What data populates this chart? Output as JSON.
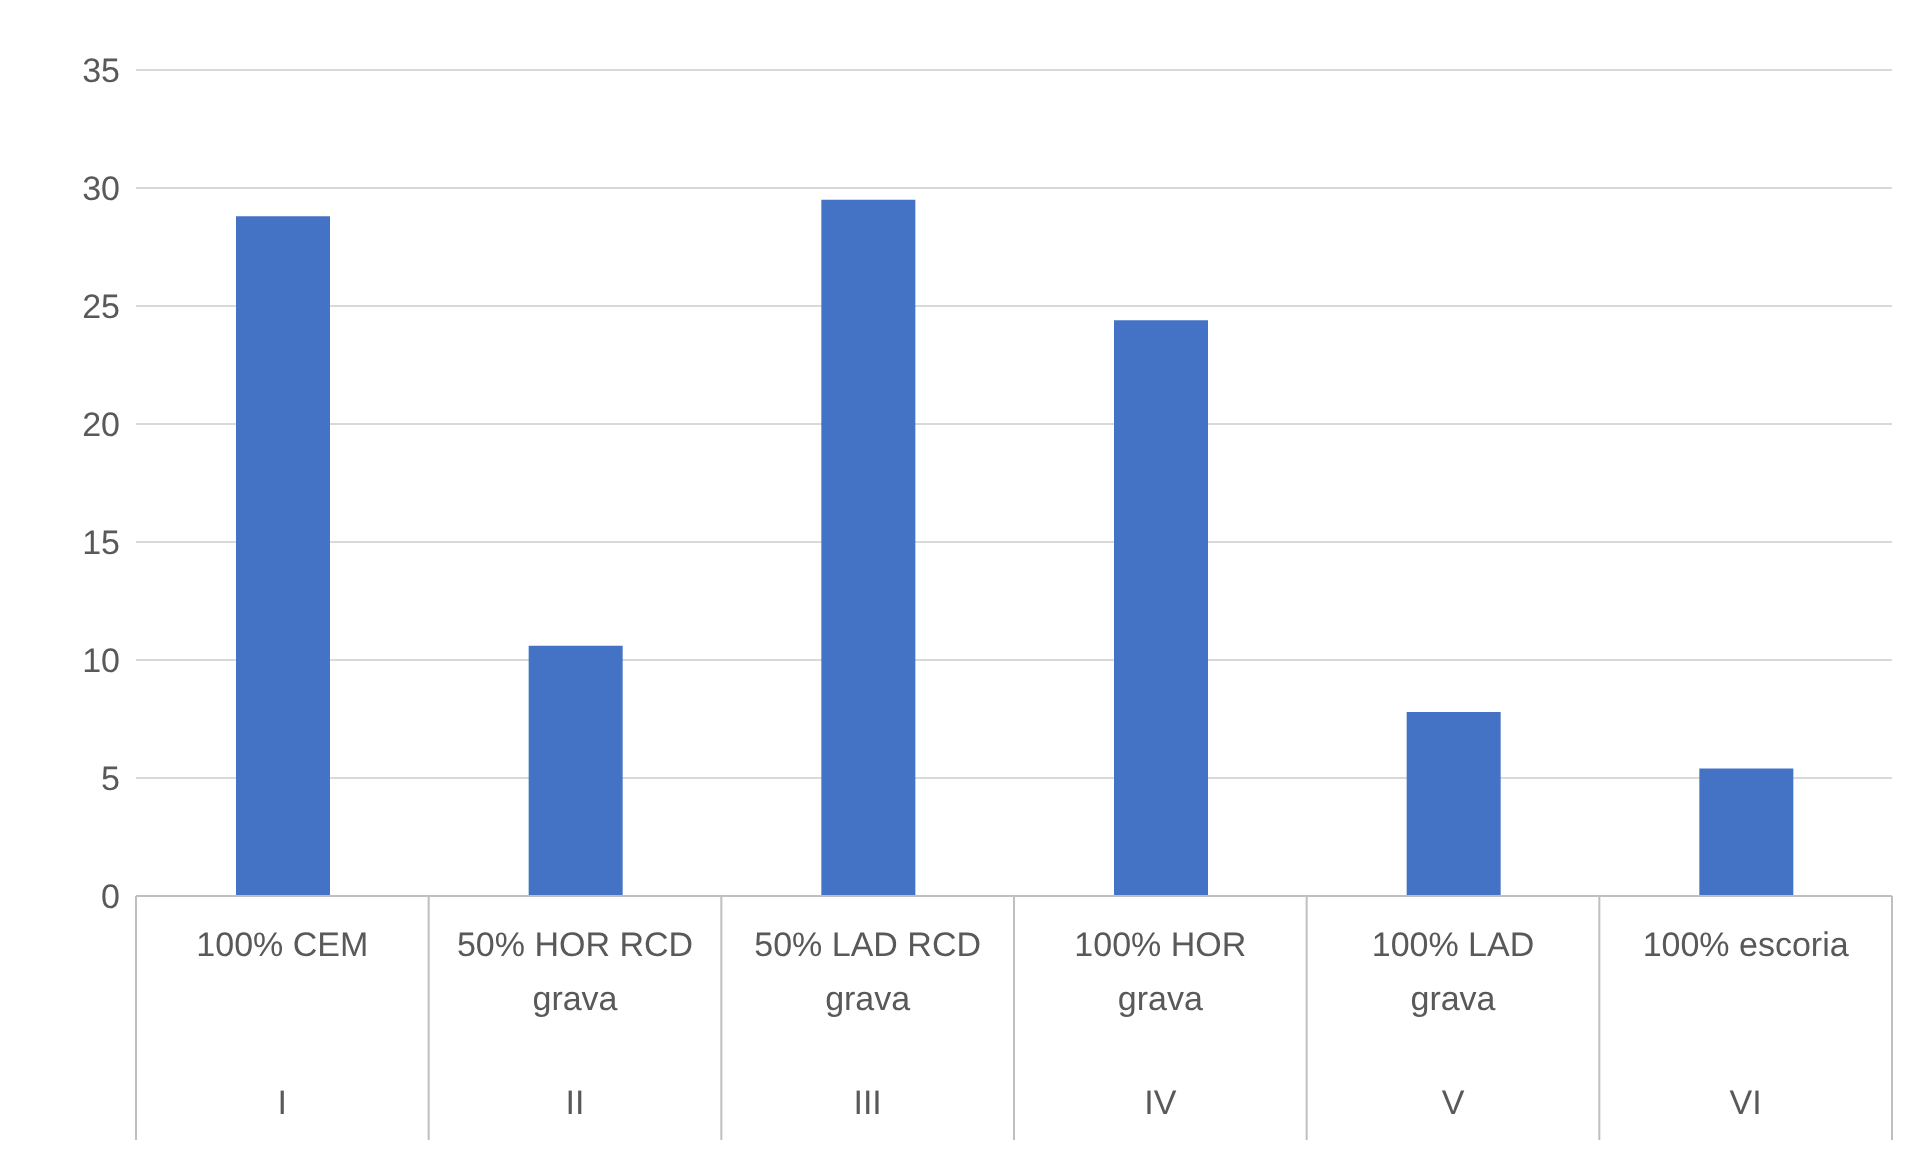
{
  "chart_data": {
    "type": "bar",
    "categories": [
      "100% CEM",
      "50% HOR RCD grava",
      "50% LAD RCD grava",
      "100% HOR grava",
      "100% LAD grava",
      "100% escoria"
    ],
    "values": [
      28.8,
      10.6,
      29.5,
      24.4,
      7.8,
      5.4
    ],
    "color": "#4472c4",
    "ylim": [
      0,
      35
    ],
    "yticks": [
      0,
      5,
      10,
      15,
      20,
      25,
      30,
      35
    ],
    "grid": "y",
    "legend": false,
    "annotations": [
      "I",
      "II",
      "III",
      "IV",
      "V",
      "VI"
    ]
  }
}
